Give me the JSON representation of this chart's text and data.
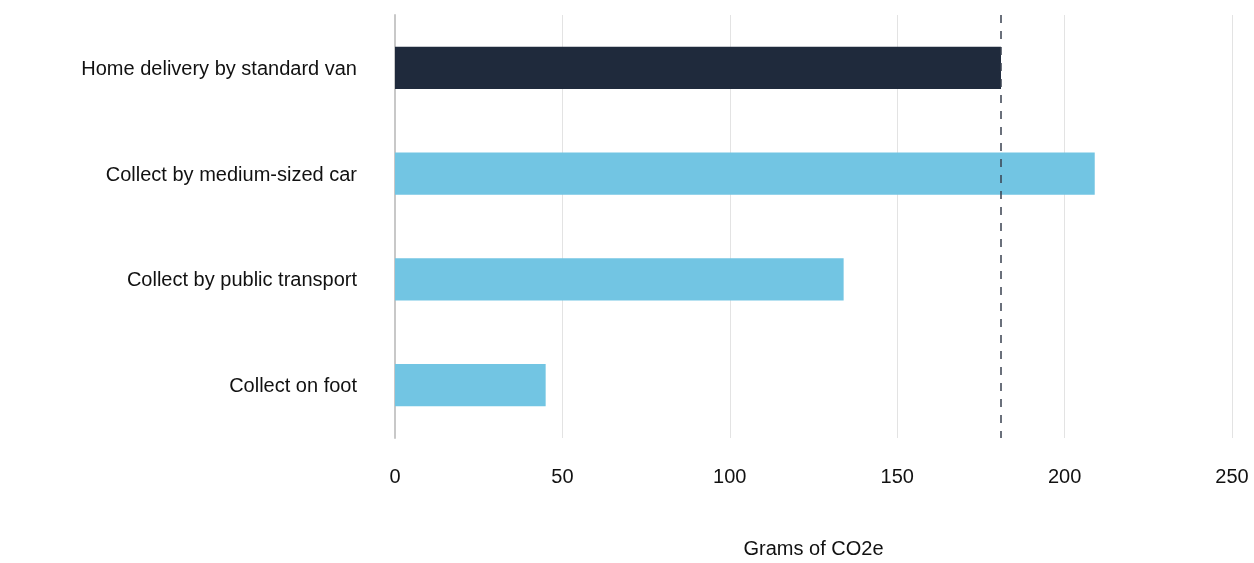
{
  "chart_data": {
    "type": "bar",
    "orientation": "horizontal",
    "xlabel": "Grams of CO2e",
    "categories": [
      "Home delivery by standard van",
      "Collect by medium-sized car",
      "Collect by public transport",
      "Collect on foot"
    ],
    "values": [
      181,
      209,
      134,
      45
    ],
    "colors": [
      "#1f2a3c",
      "#72c5e3",
      "#72c5e3",
      "#72c5e3"
    ],
    "xlim": [
      0,
      250
    ],
    "xticks": [
      0,
      50,
      100,
      150,
      200,
      250
    ],
    "grid": "x",
    "ref_lines": [
      {
        "axis": "x",
        "value": 181,
        "color": "#3a4250",
        "line_style": "dashed"
      }
    ]
  }
}
